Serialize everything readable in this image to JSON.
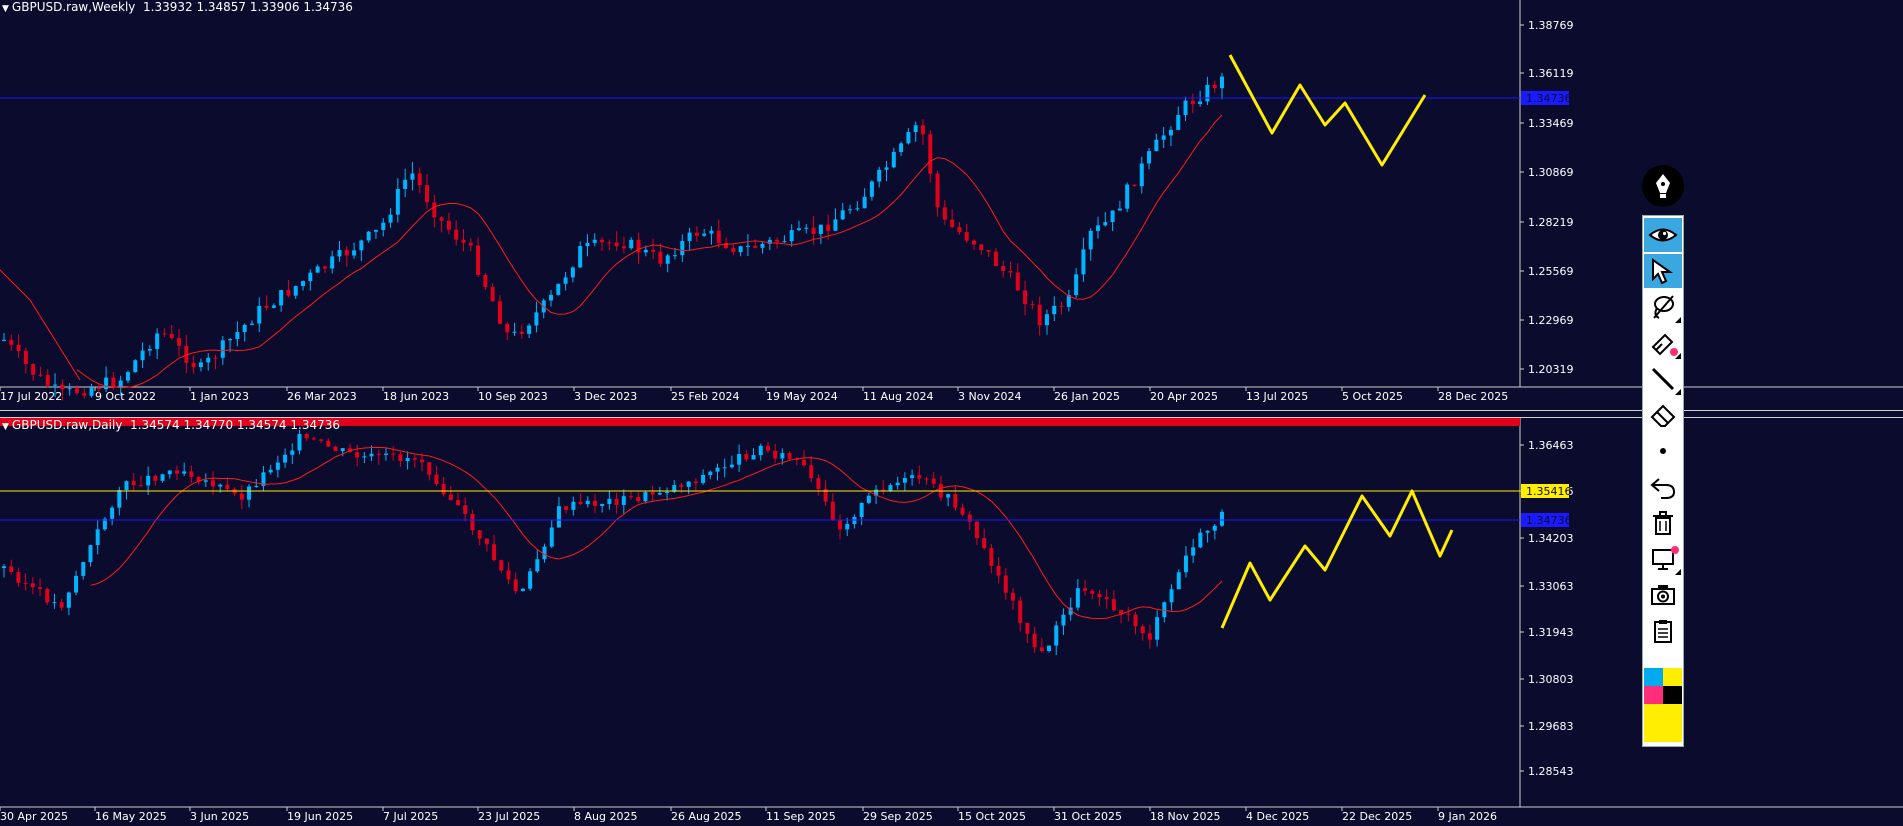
{
  "weekly": {
    "symbol_label": "GBPUSD.raw,Weekly  1.33932 1.34857 1.33906 1.34736",
    "price_labels": [
      "1.38769",
      "1.36119",
      "1.33469",
      "1.30869",
      "1.28219",
      "1.25569",
      "1.22969",
      "1.20319"
    ],
    "current_price": "1.34736",
    "date_labels": [
      "17 Jul 2022",
      "9 Oct 2022",
      "1 Jan 2023",
      "26 Mar 2023",
      "18 Jun 2023",
      "10 Sep 2023",
      "3 Dec 2023",
      "25 Feb 2024",
      "19 May 2024",
      "11 Aug 2024",
      "3 Nov 2024",
      "26 Jan 2025",
      "20 Apr 2025",
      "13 Jul 2025",
      "5 Oct 2025",
      "28 Dec 2025"
    ]
  },
  "daily": {
    "symbol_label": "GBPUSD.raw,Daily  1.34574 1.34770 1.34574 1.34736",
    "price_labels": [
      "1.36463",
      "1.35416",
      "1.34203",
      "1.33063",
      "1.31943",
      "1.30803",
      "1.29683",
      "1.28543"
    ],
    "current_price": "1.34736",
    "hline_price": "1.35416",
    "date_labels": [
      "30 Apr 2025",
      "16 May 2025",
      "3 Jun 2025",
      "19 Jun 2025",
      "7 Jul 2025",
      "23 Jul 2025",
      "8 Aug 2025",
      "26 Aug 2025",
      "11 Sep 2025",
      "29 Sep 2025",
      "15 Oct 2025",
      "31 Oct 2025",
      "18 Nov 2025",
      "4 Dec 2025",
      "22 Dec 2025",
      "9 Jan 2026"
    ]
  },
  "colors": {
    "background": "#0b0b2e",
    "bull": "#00b4ff",
    "bear": "#e0001a",
    "ma": "#ff1a1a",
    "zigzag": "#ffee00",
    "price_line": "#1a1aff",
    "hline": "#ffee00"
  },
  "toolbar": {
    "buttons": [
      "pen-icon",
      "eye-icon",
      "cursor-icon",
      "lasso-icon",
      "marker-icon",
      "line-icon",
      "eraser-icon",
      "dot-icon",
      "undo-icon",
      "trash-icon",
      "screen-icon",
      "camera-icon",
      "clipboard-icon",
      "color-palette"
    ]
  }
}
